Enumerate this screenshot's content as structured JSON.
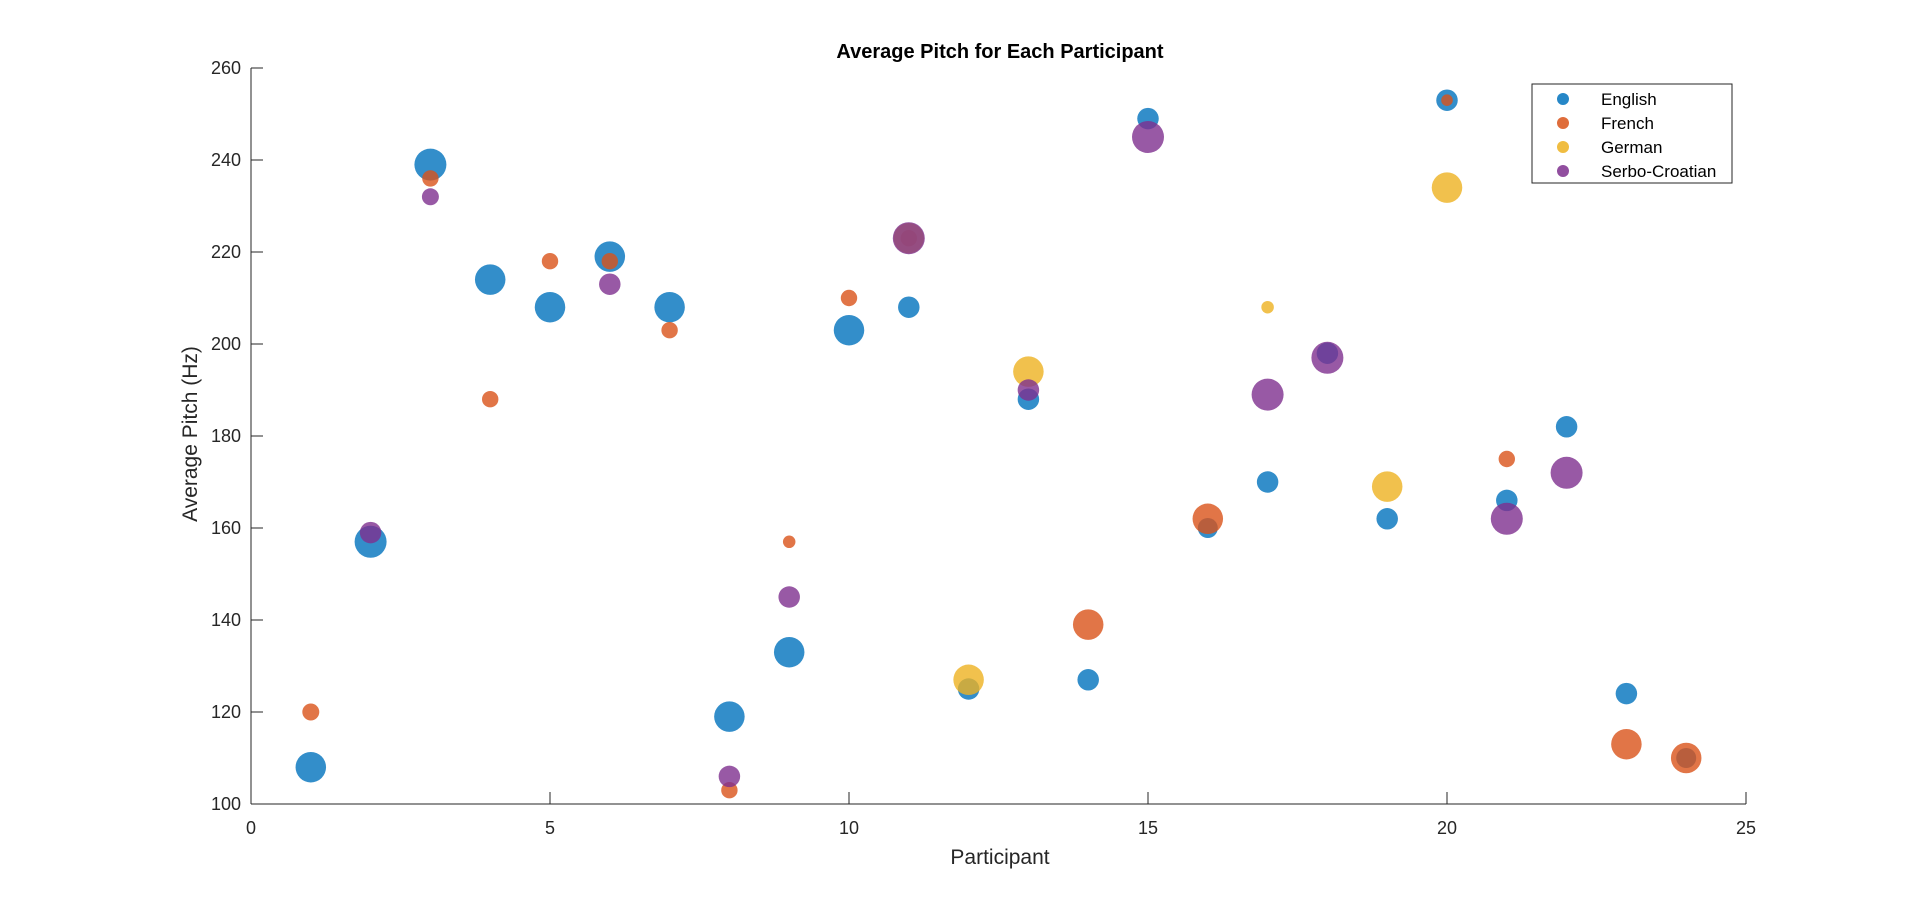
{
  "chart_data": {
    "type": "scatter",
    "title": "Average Pitch for Each Participant",
    "xlabel": "Participant",
    "ylabel": "Average Pitch (Hz)",
    "xlim": [
      0,
      25
    ],
    "ylim": [
      100,
      260
    ],
    "xticks": [
      0,
      5,
      10,
      15,
      20,
      25
    ],
    "yticks": [
      100,
      120,
      140,
      160,
      180,
      200,
      220,
      240,
      260
    ],
    "grid": false,
    "legend_position": "top-right",
    "bubble_size_encoding": "marker area varies per point (relative size 0-1)",
    "series": [
      {
        "name": "English",
        "color": "#0072BD",
        "points": [
          {
            "x": 1,
            "y": 108,
            "size": 0.75
          },
          {
            "x": 2,
            "y": 157,
            "size": 0.8
          },
          {
            "x": 3,
            "y": 239,
            "size": 0.8
          },
          {
            "x": 4,
            "y": 214,
            "size": 0.75
          },
          {
            "x": 5,
            "y": 208,
            "size": 0.75
          },
          {
            "x": 6,
            "y": 219,
            "size": 0.75
          },
          {
            "x": 7,
            "y": 208,
            "size": 0.75
          },
          {
            "x": 8,
            "y": 119,
            "size": 0.75
          },
          {
            "x": 9,
            "y": 133,
            "size": 0.75
          },
          {
            "x": 10,
            "y": 203,
            "size": 0.75
          },
          {
            "x": 11,
            "y": 208,
            "size": 0.45
          },
          {
            "x": 12,
            "y": 125,
            "size": 0.45
          },
          {
            "x": 13,
            "y": 188,
            "size": 0.45
          },
          {
            "x": 14,
            "y": 127,
            "size": 0.45
          },
          {
            "x": 15,
            "y": 249,
            "size": 0.45
          },
          {
            "x": 16,
            "y": 160,
            "size": 0.4
          },
          {
            "x": 17,
            "y": 170,
            "size": 0.45
          },
          {
            "x": 18,
            "y": 198,
            "size": 0.45
          },
          {
            "x": 19,
            "y": 162,
            "size": 0.45
          },
          {
            "x": 20,
            "y": 253,
            "size": 0.45
          },
          {
            "x": 21,
            "y": 166,
            "size": 0.45
          },
          {
            "x": 22,
            "y": 182,
            "size": 0.45
          },
          {
            "x": 23,
            "y": 124,
            "size": 0.45
          },
          {
            "x": 24,
            "y": 110,
            "size": 0.4
          }
        ]
      },
      {
        "name": "French",
        "color": "#D95319",
        "points": [
          {
            "x": 1,
            "y": 120,
            "size": 0.3
          },
          {
            "x": 3,
            "y": 236,
            "size": 0.28
          },
          {
            "x": 4,
            "y": 188,
            "size": 0.28
          },
          {
            "x": 5,
            "y": 218,
            "size": 0.28
          },
          {
            "x": 6,
            "y": 218,
            "size": 0.28
          },
          {
            "x": 7,
            "y": 203,
            "size": 0.28
          },
          {
            "x": 8,
            "y": 103,
            "size": 0.28
          },
          {
            "x": 9,
            "y": 157,
            "size": 0.15
          },
          {
            "x": 10,
            "y": 210,
            "size": 0.28
          },
          {
            "x": 11,
            "y": 223,
            "size": 0.28
          },
          {
            "x": 14,
            "y": 139,
            "size": 0.75
          },
          {
            "x": 16,
            "y": 162,
            "size": 0.75
          },
          {
            "x": 20,
            "y": 253,
            "size": 0.12
          },
          {
            "x": 21,
            "y": 175,
            "size": 0.28
          },
          {
            "x": 23,
            "y": 113,
            "size": 0.75
          },
          {
            "x": 24,
            "y": 110,
            "size": 0.75
          }
        ]
      },
      {
        "name": "German",
        "color": "#EDB120",
        "points": [
          {
            "x": 11,
            "y": 223,
            "size": 0.75
          },
          {
            "x": 12,
            "y": 127,
            "size": 0.75
          },
          {
            "x": 13,
            "y": 194,
            "size": 0.75
          },
          {
            "x": 17,
            "y": 208,
            "size": 0.15
          },
          {
            "x": 19,
            "y": 169,
            "size": 0.75
          },
          {
            "x": 20,
            "y": 234,
            "size": 0.75
          }
        ]
      },
      {
        "name": "Serbo-Croatian",
        "color": "#7E2F8E",
        "points": [
          {
            "x": 2,
            "y": 159,
            "size": 0.45
          },
          {
            "x": 3,
            "y": 232,
            "size": 0.3
          },
          {
            "x": 6,
            "y": 213,
            "size": 0.45
          },
          {
            "x": 8,
            "y": 106,
            "size": 0.45
          },
          {
            "x": 9,
            "y": 145,
            "size": 0.45
          },
          {
            "x": 11,
            "y": 223,
            "size": 0.8
          },
          {
            "x": 13,
            "y": 190,
            "size": 0.45
          },
          {
            "x": 15,
            "y": 245,
            "size": 0.8
          },
          {
            "x": 17,
            "y": 189,
            "size": 0.8
          },
          {
            "x": 18,
            "y": 197,
            "size": 0.8
          },
          {
            "x": 21,
            "y": 162,
            "size": 0.8
          },
          {
            "x": 22,
            "y": 172,
            "size": 0.8
          }
        ]
      }
    ]
  }
}
